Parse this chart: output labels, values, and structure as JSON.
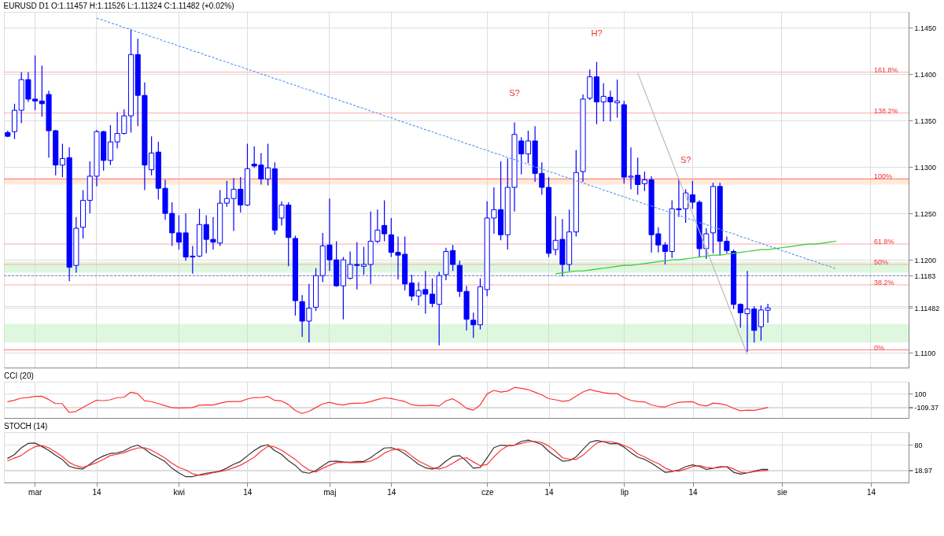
{
  "chart_data": [
    {
      "type": "candlestick",
      "title": "EURUSD  D1  O:1.11457  H:1.11526  L:1.11324  C:1.11482  (+0.02%)",
      "color": "#0000ff",
      "categories": [
        null,
        null,
        null,
        null,
        null,
        null,
        null,
        null,
        null,
        null,
        null,
        null,
        null,
        null,
        null,
        null,
        null,
        null,
        null,
        null,
        null,
        null,
        null,
        null,
        null,
        null,
        null,
        null,
        null,
        null,
        null,
        null,
        null,
        null,
        null,
        null,
        null,
        null,
        null,
        null,
        null,
        null,
        null,
        null,
        null,
        null,
        null,
        null,
        null,
        null,
        null,
        null,
        null,
        null,
        null,
        null,
        null,
        null,
        null,
        null,
        null,
        null,
        null,
        null,
        null,
        null,
        null,
        null,
        null,
        null,
        null,
        null,
        null,
        null,
        null,
        null,
        null,
        null,
        null,
        null,
        null,
        null,
        null,
        null,
        null,
        null,
        null,
        null,
        null,
        null,
        null,
        null,
        null,
        null,
        null,
        null,
        null,
        null,
        null,
        null,
        null,
        null,
        null,
        null,
        null,
        null,
        null,
        null,
        null,
        null,
        null,
        null,
        null,
        null,
        null,
        null,
        null,
        null,
        null,
        null,
        null,
        null,
        null,
        null,
        null,
        null,
        null,
        null,
        null,
        null,
        null,
        null
      ],
      "ohlc": [
        [
          1.1337,
          1.1339,
          1.1332,
          1.1333
        ],
        [
          1.1338,
          1.1368,
          1.133,
          1.1361
        ],
        [
          1.1361,
          1.1402,
          1.1347,
          1.1394
        ],
        [
          1.1394,
          1.1402,
          1.137,
          1.1373
        ],
        [
          1.1373,
          1.142,
          1.1361,
          1.1371
        ],
        [
          1.1371,
          1.1409,
          1.1354,
          1.1368
        ],
        [
          1.1378,
          1.1382,
          1.131,
          1.1339
        ],
        [
          1.1339,
          1.134,
          1.1291,
          1.1302
        ],
        [
          1.1302,
          1.1325,
          1.1289,
          1.1309
        ],
        [
          1.131,
          1.1321,
          1.1177,
          1.1192
        ],
        [
          1.1194,
          1.1246,
          1.1186,
          1.1234
        ],
        [
          1.1235,
          1.1275,
          1.1223,
          1.1264
        ],
        [
          1.1264,
          1.1306,
          1.125,
          1.129
        ],
        [
          1.129,
          1.134,
          1.1279,
          1.1338
        ],
        [
          1.1338,
          1.1339,
          1.1296,
          1.1307
        ],
        [
          1.1307,
          1.1345,
          1.1302,
          1.1327
        ],
        [
          1.1327,
          1.1359,
          1.132,
          1.1336
        ],
        [
          1.1336,
          1.1362,
          1.1335,
          1.1355
        ],
        [
          1.1355,
          1.1448,
          1.1337,
          1.1421
        ],
        [
          1.1421,
          1.1438,
          1.1344,
          1.1377
        ],
        [
          1.1377,
          1.1391,
          1.1275,
          1.1302
        ],
        [
          1.1297,
          1.1333,
          1.1291,
          1.1315
        ],
        [
          1.1316,
          1.1327,
          1.1265,
          1.1277
        ],
        [
          1.1277,
          1.1286,
          1.1243,
          1.125
        ],
        [
          1.125,
          1.1262,
          1.1215,
          1.1229
        ],
        [
          1.1229,
          1.1248,
          1.1211,
          1.1219
        ],
        [
          1.1229,
          1.125,
          1.1199,
          1.1203
        ],
        [
          1.1203,
          1.1215,
          1.1185,
          1.1204
        ],
        [
          1.1204,
          1.1255,
          1.1203,
          1.1238
        ],
        [
          1.1238,
          1.1248,
          1.1207,
          1.1222
        ],
        [
          1.1222,
          1.1246,
          1.1211,
          1.1219
        ],
        [
          1.1218,
          1.1275,
          1.1215,
          1.1261
        ],
        [
          1.1261,
          1.1285,
          1.1257,
          1.1266
        ],
        [
          1.1266,
          1.1288,
          1.1231,
          1.1276
        ],
        [
          1.1276,
          1.1289,
          1.1251,
          1.1259
        ],
        [
          1.1259,
          1.1325,
          1.1258,
          1.1298
        ],
        [
          1.1303,
          1.1322,
          1.1299,
          1.1301
        ],
        [
          1.1302,
          1.1315,
          1.1281,
          1.1287
        ],
        [
          1.1287,
          1.1325,
          1.128,
          1.1299
        ],
        [
          1.1298,
          1.1305,
          1.1227,
          1.1232
        ],
        [
          1.1245,
          1.1263,
          1.1237,
          1.1259
        ],
        [
          1.1259,
          1.1262,
          1.1193,
          1.1224
        ],
        [
          1.1223,
          1.1226,
          1.114,
          1.1156
        ],
        [
          1.1155,
          1.1162,
          1.1117,
          1.1134
        ],
        [
          1.1134,
          1.1174,
          1.1111,
          1.1148
        ],
        [
          1.1149,
          1.1191,
          1.1145,
          1.1183
        ],
        [
          1.1183,
          1.1229,
          1.1176,
          1.1215
        ],
        [
          1.1216,
          1.1266,
          1.1188,
          1.12
        ],
        [
          1.12,
          1.122,
          1.1171,
          1.1172
        ],
        [
          1.1172,
          1.1203,
          1.1136,
          1.12
        ],
        [
          1.118,
          1.1209,
          1.1179,
          1.1195
        ],
        [
          1.1195,
          1.1219,
          1.1168,
          1.1194
        ],
        [
          1.1193,
          1.1214,
          1.1184,
          1.1195
        ],
        [
          1.1195,
          1.1252,
          1.1174,
          1.122
        ],
        [
          1.122,
          1.1254,
          1.1218,
          1.1232
        ],
        [
          1.1237,
          1.1264,
          1.122,
          1.1228
        ],
        [
          1.1227,
          1.1245,
          1.1203,
          1.1208
        ],
        [
          1.1208,
          1.1225,
          1.1179,
          1.1205
        ],
        [
          1.1206,
          1.1225,
          1.1167,
          1.1174
        ],
        [
          1.1175,
          1.1184,
          1.1156,
          1.1161
        ],
        [
          1.1161,
          1.1176,
          1.1151,
          1.1167
        ],
        [
          1.1168,
          1.1188,
          1.1142,
          1.1163
        ],
        [
          1.1163,
          1.118,
          1.1149,
          1.1153
        ],
        [
          1.1152,
          1.1187,
          1.1108,
          1.1183
        ],
        [
          1.1184,
          1.1213,
          1.1178,
          1.1209
        ],
        [
          1.121,
          1.1216,
          1.1188,
          1.1195
        ],
        [
          1.1194,
          1.1199,
          1.116,
          1.1166
        ],
        [
          1.1166,
          1.1172,
          1.1124,
          1.1136
        ],
        [
          1.1135,
          1.1143,
          1.1116,
          1.113
        ],
        [
          1.113,
          1.118,
          1.1125,
          1.1171
        ],
        [
          1.1168,
          1.1263,
          1.1161,
          1.1245
        ],
        [
          1.1245,
          1.1278,
          1.1228,
          1.1254
        ],
        [
          1.1254,
          1.1306,
          1.1221,
          1.1227
        ],
        [
          1.1227,
          1.1309,
          1.1211,
          1.1278
        ],
        [
          1.1278,
          1.1348,
          1.1252,
          1.1335
        ],
        [
          1.1328,
          1.1332,
          1.1292,
          1.1314
        ],
        [
          1.1314,
          1.1339,
          1.1304,
          1.1328
        ],
        [
          1.1328,
          1.1344,
          1.1284,
          1.1293
        ],
        [
          1.1293,
          1.1305,
          1.127,
          1.1278
        ],
        [
          1.1278,
          1.1289,
          1.1203,
          1.1207
        ],
        [
          1.1211,
          1.1247,
          1.1205,
          1.1221
        ],
        [
          1.1222,
          1.1244,
          1.1182,
          1.1195
        ],
        [
          1.1195,
          1.1254,
          1.1188,
          1.123
        ],
        [
          1.123,
          1.1318,
          1.1225,
          1.1294
        ],
        [
          1.1295,
          1.1378,
          1.1284,
          1.1373
        ],
        [
          1.1374,
          1.1405,
          1.1372,
          1.1397
        ],
        [
          1.1397,
          1.1413,
          1.1346,
          1.137
        ],
        [
          1.137,
          1.139,
          1.1349,
          1.1376
        ],
        [
          1.1375,
          1.1382,
          1.1349,
          1.137
        ],
        [
          1.1369,
          1.1394,
          1.1353,
          1.1371
        ],
        [
          1.1367,
          1.1371,
          1.1282,
          1.1289
        ],
        [
          1.1289,
          1.1321,
          1.1276,
          1.129
        ],
        [
          1.1291,
          1.131,
          1.127,
          1.1281
        ],
        [
          1.1282,
          1.1295,
          1.1274,
          1.1286
        ],
        [
          1.1286,
          1.129,
          1.1208,
          1.1227
        ],
        [
          1.1228,
          1.1235,
          1.1208,
          1.1216
        ],
        [
          1.1216,
          1.1219,
          1.1195,
          1.1209
        ],
        [
          1.1209,
          1.1264,
          1.1202,
          1.1255
        ],
        [
          1.1255,
          1.1287,
          1.1246,
          1.1254
        ],
        [
          1.1255,
          1.1276,
          1.124,
          1.1272
        ],
        [
          1.127,
          1.1285,
          1.1255,
          1.1262
        ],
        [
          1.1262,
          1.1264,
          1.1203,
          1.1212
        ],
        [
          1.1212,
          1.1234,
          1.1201,
          1.1228
        ],
        [
          1.1229,
          1.1283,
          1.1207,
          1.1279
        ],
        [
          1.1279,
          1.1283,
          1.1205,
          1.122
        ],
        [
          1.122,
          1.1225,
          1.1207,
          1.121
        ],
        [
          1.1209,
          1.1211,
          1.1147,
          1.1152
        ],
        [
          1.1152,
          1.1153,
          1.1127,
          1.1143
        ],
        [
          1.1142,
          1.1188,
          1.1101,
          1.1147
        ],
        [
          1.1147,
          1.115,
          1.1111,
          1.1124
        ],
        [
          1.1128,
          1.1151,
          1.1113,
          1.1146
        ],
        [
          1.11457,
          1.11526,
          1.11324,
          1.11482
        ],
        null,
        null,
        null,
        null,
        null,
        null,
        null,
        null,
        null,
        null,
        null,
        null,
        null,
        null,
        null,
        null,
        null,
        null,
        null,
        null
      ],
      "series": [
        {
          "type": "line",
          "color": "#5b9bf0",
          "line_style": "dashed",
          "values": [
            null,
            null,
            null,
            null,
            null,
            null,
            null,
            null,
            null,
            null,
            null,
            null,
            null,
            1.146,
            1.1458,
            1.1455,
            1.1453,
            1.145,
            1.1448,
            1.1445,
            1.1443,
            1.144,
            1.1438,
            1.1435,
            1.1433,
            1.143,
            1.1428,
            1.1425,
            1.1423,
            1.142,
            1.1418,
            1.1415,
            1.1413,
            1.141,
            1.1408,
            1.1405,
            1.1403,
            1.14,
            1.1398,
            1.1395,
            1.1393,
            1.139,
            1.1388,
            1.1385,
            1.1383,
            1.138,
            1.1378,
            1.1375,
            1.1373,
            1.137,
            1.1368,
            1.1365,
            1.1363,
            1.136,
            1.1358,
            1.1355,
            1.1353,
            1.135,
            1.1348,
            1.1345,
            1.1343,
            1.134,
            1.1338,
            1.1335,
            1.1333,
            1.133,
            1.1328,
            1.1325,
            1.1323,
            1.132,
            1.1318,
            1.1315,
            1.1313,
            1.131,
            1.1308,
            1.1305,
            1.1303,
            1.13,
            1.1298,
            1.1295,
            1.1293,
            1.129,
            1.1288,
            1.1285,
            1.1283,
            1.128,
            1.1278,
            1.1275,
            1.1273,
            1.127,
            1.1268,
            1.1265,
            1.1263,
            1.126,
            1.1258,
            1.1255,
            1.1253,
            1.125,
            1.1248,
            1.1245,
            1.1243,
            1.124,
            1.1238,
            1.1235,
            1.1233,
            1.123,
            1.1228,
            1.1225,
            1.1223,
            1.122,
            1.1218,
            1.1215,
            1.1213,
            1.121,
            1.1208,
            1.1205,
            1.1203,
            1.12,
            1.1198,
            1.1195,
            1.1193,
            1.119,
            null,
            null,
            null,
            null,
            null,
            null,
            null,
            null,
            null,
            null
          ]
        },
        {
          "type": "line",
          "color": "#33cc33",
          "values": [
            null,
            null,
            null,
            null,
            null,
            null,
            null,
            null,
            null,
            null,
            null,
            null,
            null,
            null,
            null,
            null,
            null,
            null,
            null,
            null,
            null,
            null,
            null,
            null,
            null,
            null,
            null,
            null,
            null,
            null,
            null,
            null,
            null,
            null,
            null,
            null,
            null,
            null,
            null,
            null,
            null,
            null,
            null,
            null,
            null,
            null,
            null,
            null,
            null,
            null,
            null,
            null,
            null,
            null,
            null,
            null,
            null,
            null,
            null,
            null,
            null,
            null,
            null,
            null,
            null,
            null,
            null,
            null,
            null,
            null,
            null,
            null,
            null,
            null,
            null,
            null,
            null,
            null,
            null,
            null,
            1.1185,
            1.1186,
            1.1187,
            1.1188,
            1.1188,
            1.1189,
            1.119,
            1.1191,
            1.1192,
            1.1193,
            1.1194,
            1.1194,
            1.1195,
            1.1196,
            1.1197,
            1.1198,
            1.1199,
            1.12,
            1.12,
            1.1201,
            1.1202,
            1.1203,
            1.1204,
            1.1205,
            1.1205,
            1.1206,
            1.1207,
            1.1208,
            1.1209,
            1.121,
            1.1211,
            1.1211,
            1.1212,
            1.1213,
            1.1214,
            1.1215,
            1.1216,
            1.1217,
            1.1217,
            1.1218,
            1.1219,
            1.122,
            null,
            null,
            null,
            null,
            null,
            null,
            null,
            null,
            null,
            null
          ]
        },
        {
          "type": "line",
          "color": "#bbbbbb",
          "values": [
            null,
            null,
            null,
            null,
            null,
            null,
            null,
            null,
            null,
            null,
            null,
            null,
            null,
            null,
            null,
            null,
            null,
            null,
            null,
            null,
            null,
            null,
            null,
            null,
            null,
            null,
            null,
            null,
            null,
            null,
            null,
            null,
            null,
            null,
            null,
            null,
            null,
            null,
            null,
            null,
            null,
            null,
            null,
            null,
            null,
            null,
            null,
            null,
            null,
            null,
            null,
            null,
            null,
            null,
            null,
            null,
            null,
            null,
            null,
            null,
            null,
            null,
            null,
            null,
            null,
            null,
            null,
            null,
            null,
            null,
            null,
            null,
            null,
            null,
            null,
            null,
            null,
            null,
            null,
            null,
            null,
            null,
            null,
            null,
            null,
            null,
            null,
            null,
            null,
            null,
            null,
            null,
            1.1401,
            1.1382,
            1.1363,
            1.1344,
            1.1325,
            1.1306,
            1.1287,
            1.1269,
            1.125,
            1.1231,
            1.1212,
            1.1193,
            1.1174,
            1.1155,
            1.1136,
            1.1117,
            1.1098,
            null,
            null,
            null,
            null,
            null,
            null,
            null,
            null,
            null,
            null,
            null,
            null,
            null,
            null,
            null,
            null,
            null,
            null,
            null,
            null,
            null,
            null,
            null
          ]
        }
      ],
      "bands": [
        {
          "axis": "y",
          "from": 1.1111,
          "to": 1.1131,
          "color": "#b5edb5"
        },
        {
          "axis": "y",
          "from": 1.1186,
          "to": 1.1198,
          "color": "#b5edb5"
        },
        {
          "axis": "y",
          "from": 1.1281,
          "to": 1.1288,
          "color": "#ffcfa8"
        }
      ],
      "ref_lines": [
        {
          "axis": "y",
          "value": 1.1183,
          "color": "#7777dd",
          "line_style": "dashed"
        },
        {
          "axis": "y",
          "value": 1.1402,
          "color": "#ffaaaa"
        },
        {
          "axis": "y",
          "value": 1.1358,
          "color": "#ffaaaa"
        },
        {
          "axis": "y",
          "value": 1.1287,
          "color": "#ff7777"
        },
        {
          "axis": "y",
          "value": 1.1217,
          "color": "#ffaaaa"
        },
        {
          "axis": "y",
          "value": 1.1195,
          "color": "#ffaaaa"
        },
        {
          "axis": "y",
          "value": 1.1173,
          "color": "#ffaaaa"
        },
        {
          "axis": "y",
          "value": 1.1103,
          "color": "#ff7777"
        }
      ],
      "annotations": [
        {
          "text": "161.8%",
          "y": 1.1402
        },
        {
          "text": "138.2%",
          "y": 1.1358
        },
        {
          "text": "100%",
          "y": 1.1287
        },
        {
          "text": "61.8%",
          "y": 1.1217
        },
        {
          "text": "50%",
          "y": 1.1195
        },
        {
          "text": "38.2%",
          "y": 1.1173
        },
        {
          "text": "0%",
          "y": 1.1103
        },
        {
          "text": "S?",
          "y": 1.1348
        },
        {
          "text": "H?",
          "y": 1.1413
        },
        {
          "text": "S?",
          "y": 1.1276
        }
      ],
      "ylim": [
        1.1084,
        1.1467
      ],
      "yticks": [
        {
          "value": 1.11,
          "label": "1.1100"
        },
        {
          "value": 1.115,
          "label": null
        },
        1.11482,
        1.1183,
        {
          "value": 1.12,
          "label": "1.1200"
        },
        {
          "value": 1.125,
          "label": "1.1250"
        },
        {
          "value": 1.13,
          "label": "1.1300"
        },
        {
          "value": 1.135,
          "label": "1.1350"
        },
        {
          "value": 1.14,
          "label": "1.1400"
        },
        {
          "value": 1.145,
          "label": "1.1450"
        }
      ],
      "tick_labels": "y",
      "grid": true
    },
    {
      "type": "line",
      "title": "CCI (20)",
      "categories": [
        null,
        null,
        null,
        null,
        null,
        null,
        null,
        null,
        null,
        null,
        null,
        null,
        null,
        null,
        null,
        null,
        null,
        null,
        null,
        null,
        null,
        null,
        null,
        null,
        null,
        null,
        null,
        null,
        null,
        null,
        null,
        null,
        null,
        null,
        null,
        null,
        null,
        null,
        null,
        null,
        null,
        null,
        null,
        null,
        null,
        null,
        null,
        null,
        null,
        null,
        null,
        null,
        null,
        null,
        null,
        null,
        null,
        null,
        null,
        null,
        null,
        null,
        null,
        null,
        null,
        null,
        null,
        null,
        null,
        null,
        null,
        null,
        null,
        null,
        null,
        null,
        null,
        null,
        null,
        null,
        null,
        null,
        null,
        null,
        null,
        null,
        null,
        null,
        null,
        null,
        null,
        null,
        null,
        null,
        null,
        null,
        null,
        null,
        null,
        null,
        null,
        null,
        null,
        null,
        null,
        null,
        null,
        null,
        null,
        null,
        null,
        null,
        null,
        null,
        null,
        null,
        null,
        null,
        null,
        null,
        null,
        null,
        null,
        null,
        null,
        null,
        null,
        null,
        null,
        null,
        null,
        null
      ],
      "series": [
        {
          "color": "#ff3333",
          "values": [
            -24,
            -2,
            32,
            40,
            57,
            60,
            12,
            -52,
            -52,
            -186,
            -172,
            -112,
            -54,
            -1,
            -7,
            5,
            38,
            44,
            121,
            99,
            -8,
            -22,
            -52,
            -83,
            -114,
            -118,
            -115,
            -113,
            -77,
            -71,
            -75,
            -47,
            -24,
            -20,
            -20,
            17,
            41,
            38,
            58,
            -3,
            -12,
            -65,
            -157,
            -201,
            -171,
            -113,
            -58,
            -33,
            -59,
            -75,
            -51,
            -47,
            -44,
            -21,
            10,
            35,
            25,
            2,
            -21,
            -69,
            -84,
            -82,
            -78,
            -89,
            -10,
            21,
            -44,
            -125,
            -152,
            -72,
            96,
            148,
            124,
            138,
            194,
            180,
            160,
            120,
            80,
            23,
            5,
            -18,
            -5,
            63,
            124,
            162,
            136,
            114,
            100,
            100,
            36,
            -4,
            -20,
            -27,
            -73,
            -97,
            -103,
            -61,
            -33,
            -26,
            -24,
            -71,
            -89,
            -44,
            -57,
            -78,
            -126,
            -161,
            -151,
            -155,
            -134,
            -109.37,
            null,
            null,
            null,
            null,
            null,
            null,
            null,
            null,
            null,
            null,
            null,
            null,
            null,
            null,
            null,
            null,
            null,
            null,
            null,
            null
          ]
        }
      ],
      "ylim": [
        -270,
        280
      ],
      "yticks": [
        100,
        {
          "value": -100,
          "label": null
        },
        -109.37
      ],
      "tick_labels": "y",
      "grid": true
    },
    {
      "type": "line",
      "title": "STOCH (14)",
      "categories": [
        null,
        null,
        null,
        null,
        "mar",
        null,
        null,
        null,
        null,
        null,
        null,
        null,
        null,
        "14",
        null,
        null,
        null,
        null,
        null,
        null,
        null,
        null,
        null,
        null,
        null,
        "kwi",
        null,
        null,
        null,
        null,
        null,
        null,
        null,
        null,
        null,
        "14",
        null,
        null,
        null,
        null,
        null,
        null,
        null,
        null,
        null,
        null,
        null,
        "maj",
        null,
        null,
        null,
        null,
        null,
        null,
        null,
        null,
        "14",
        null,
        null,
        null,
        null,
        null,
        null,
        null,
        null,
        null,
        null,
        null,
        null,
        null,
        "cze",
        null,
        null,
        null,
        null,
        null,
        null,
        null,
        null,
        "14",
        null,
        null,
        null,
        null,
        null,
        null,
        null,
        null,
        null,
        null,
        "lip",
        null,
        null,
        null,
        null,
        null,
        null,
        null,
        null,
        null,
        "14",
        null,
        null,
        null,
        null,
        null,
        null,
        null,
        null,
        null,
        null,
        null,
        null,
        "sie",
        null,
        null,
        null,
        null,
        null,
        null,
        null,
        null,
        null,
        null,
        null,
        null,
        "14",
        null,
        null,
        null,
        null,
        null
      ],
      "series": [
        {
          "color": "#333333",
          "values": [
            47,
            56,
            72,
            83,
            84,
            76,
            67,
            55,
            45,
            29,
            24,
            22,
            33,
            45,
            53,
            59,
            60,
            65,
            74,
            79,
            70,
            58,
            49,
            40,
            24,
            13,
            4,
            4,
            8,
            12,
            14,
            17,
            24,
            33,
            40,
            53,
            66,
            76,
            80,
            66,
            57,
            42,
            31,
            15,
            12,
            18,
            30,
            40,
            41,
            39,
            38,
            40,
            40,
            49,
            61,
            72,
            73,
            68,
            58,
            46,
            33,
            25,
            22,
            27,
            41,
            52,
            54,
            41,
            24,
            26,
            49,
            73,
            79,
            78,
            79,
            88,
            91,
            86,
            80,
            64,
            52,
            41,
            42,
            51,
            69,
            86,
            90,
            87,
            82,
            83,
            74,
            61,
            50,
            45,
            36,
            25,
            14,
            16,
            20,
            28,
            32,
            28,
            21,
            24,
            28,
            27,
            14,
            10,
            13,
            17,
            21,
            21,
            null,
            null,
            null,
            null,
            null,
            null,
            null,
            null,
            null,
            null,
            null,
            null,
            null,
            null,
            null,
            null,
            null,
            null,
            null,
            null
          ]
        },
        {
          "color": "#ff3333",
          "values": [
            41,
            48,
            54,
            66,
            75,
            78,
            73,
            63,
            52,
            38,
            30,
            26,
            31,
            37,
            45,
            54,
            57,
            61,
            67,
            72,
            73,
            67,
            58,
            48,
            36,
            26,
            20,
            11,
            7,
            9,
            13,
            16,
            19,
            25,
            31,
            40,
            50,
            64,
            76,
            75,
            67,
            56,
            45,
            31,
            20,
            15,
            24,
            31,
            37,
            38,
            37,
            37,
            38,
            41,
            48,
            60,
            67,
            70,
            66,
            53,
            41,
            33,
            25,
            22,
            27,
            36,
            46,
            49,
            39,
            30,
            33,
            51,
            67,
            77,
            79,
            83,
            87,
            88,
            85,
            77,
            64,
            49,
            45,
            45,
            55,
            70,
            84,
            88,
            87,
            84,
            78,
            71,
            58,
            51,
            42,
            35,
            24,
            18,
            17,
            22,
            28,
            30,
            26,
            24,
            26,
            28,
            22,
            14,
            13,
            16,
            18,
            18.97,
            null,
            null,
            null,
            null,
            null,
            null,
            null,
            null,
            null,
            null,
            null,
            null,
            null,
            null,
            null,
            null,
            null,
            null,
            null,
            null
          ]
        }
      ],
      "ylim": [
        -10,
        110
      ],
      "yticks": [
        80,
        {
          "value": 20,
          "label": null
        },
        18.97
      ],
      "grid": true
    }
  ]
}
